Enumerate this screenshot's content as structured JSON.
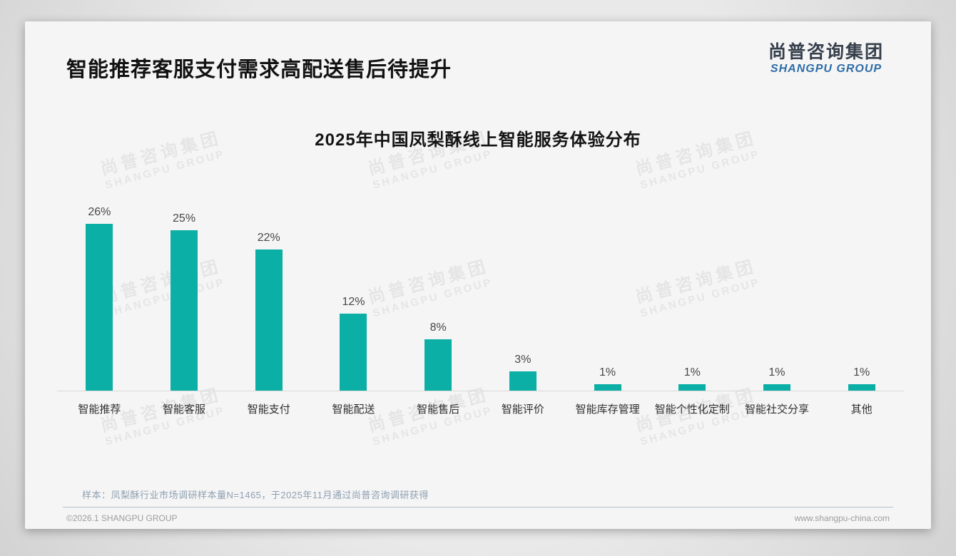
{
  "slide": {
    "title": "智能推荐客服支付需求高配送售后待提升",
    "logo": {
      "name_cn": "尚普咨询集团",
      "name_en": "SHANGPU GROUP"
    },
    "watermark": {
      "line1": "尚普咨询集团",
      "line2": "SHANGPU GROUP"
    },
    "footnote": "样本：凤梨酥行业市场调研样本量N=1465，于2025年11月通过尚普咨询调研获得",
    "footer": {
      "left": "©2026.1 SHANGPU GROUP",
      "right": "www.shangpu-china.com"
    }
  },
  "colors": {
    "bar": "#0BAFA5",
    "logo_blue": "#2E6DA8",
    "axis_line": "#d9d9d9"
  },
  "chart_data": {
    "type": "bar",
    "title": "2025年中国凤梨酥线上智能服务体验分布",
    "categories": [
      "智能推荐",
      "智能客服",
      "智能支付",
      "智能配送",
      "智能售后",
      "智能评价",
      "智能库存管理",
      "智能个性化定制",
      "智能社交分享",
      "其他"
    ],
    "values": [
      26,
      25,
      22,
      12,
      8,
      3,
      1,
      1,
      1,
      1
    ],
    "unit": "%",
    "xlabel": "",
    "ylabel": "",
    "ylim": [
      0,
      28
    ],
    "grid": false,
    "legend": null,
    "value_labels_shown": true
  }
}
